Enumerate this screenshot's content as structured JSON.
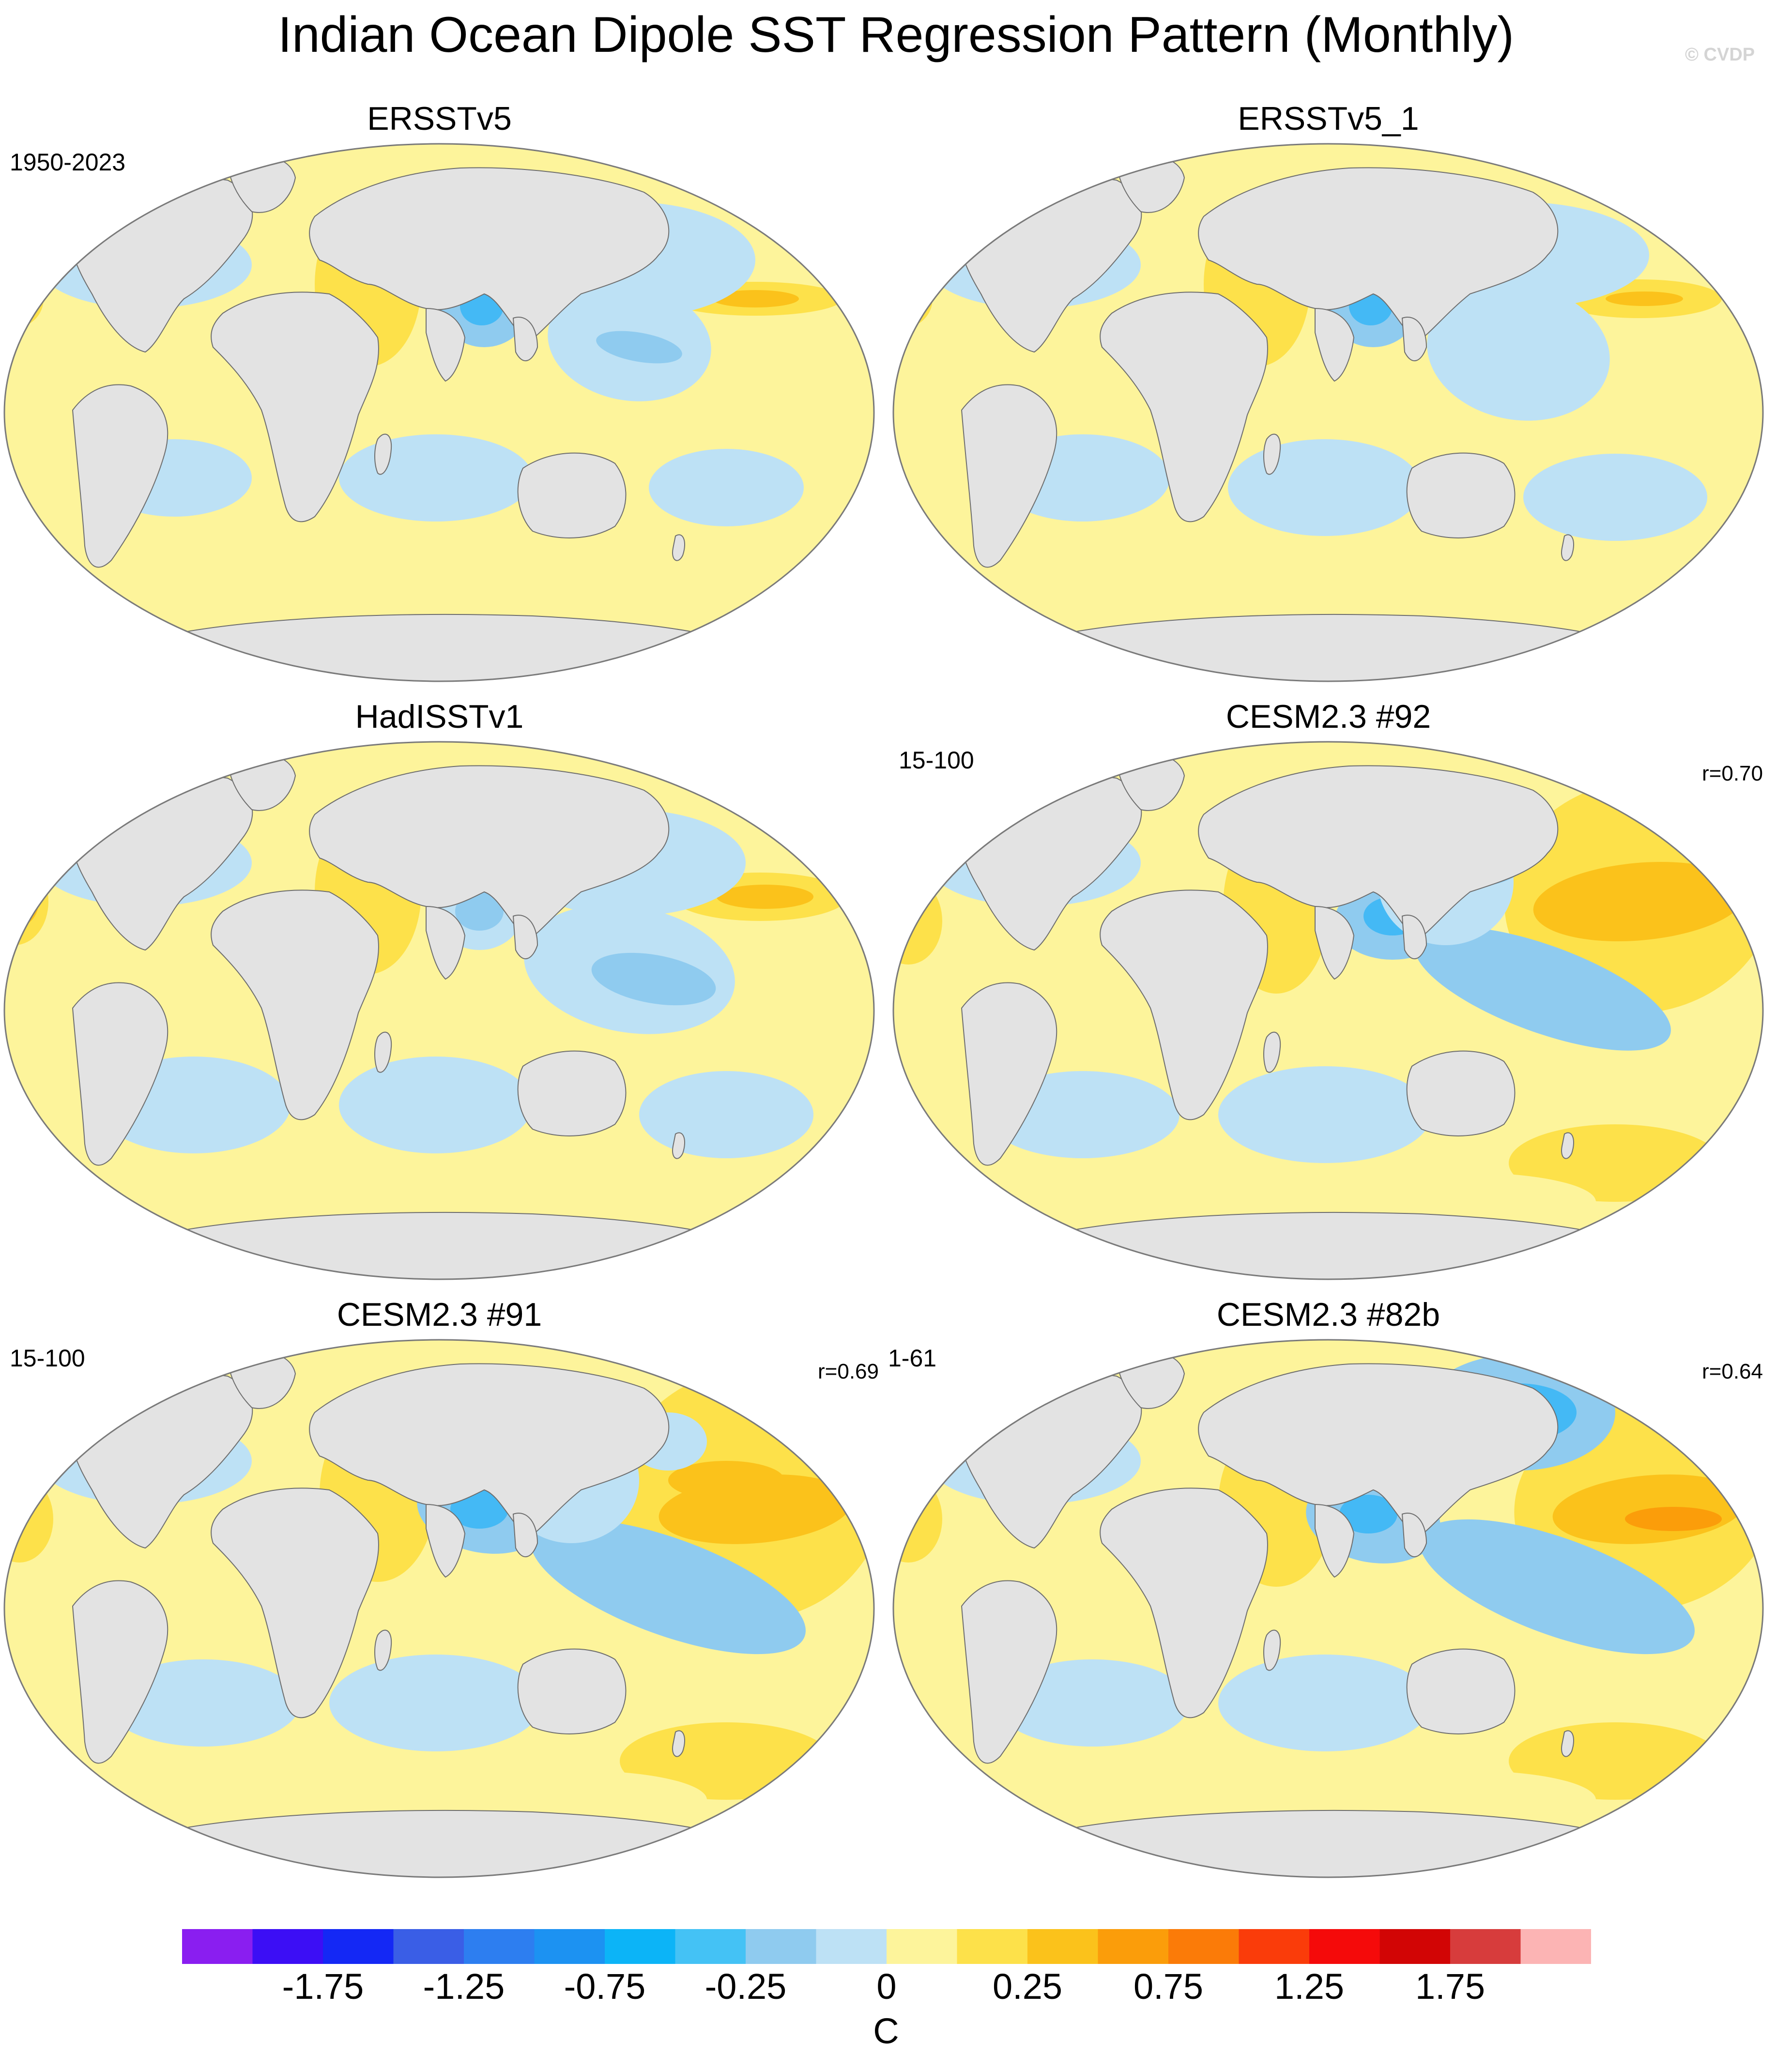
{
  "figure": {
    "title": "Indian Ocean Dipole SST Regression Pattern (Monthly)",
    "copyright": "© CVDP"
  },
  "palette": {
    "land": "#e3e3e3",
    "coast": "#6e6e6e",
    "neg1": "#bde1f5",
    "neg2": "#8fcbef",
    "neg3": "#44b9f5",
    "neg4": "#1c92f2",
    "pos1": "#fdf49b",
    "pos2": "#fde14a",
    "pos3": "#fbc21b",
    "pos4": "#fb9d0a"
  },
  "panels": [
    {
      "title": "ERSSTv5",
      "years": "1950-2023",
      "corr": ""
    },
    {
      "title": "ERSSTv5_1",
      "years": "",
      "corr": ""
    },
    {
      "title": "HadISSTv1",
      "years": "",
      "corr": ""
    },
    {
      "title": "CESM2.3 #92",
      "years": "15-100",
      "corr": "r=0.70"
    },
    {
      "title": "CESM2.3 #91",
      "years": "15-100",
      "corr": "r=0.69"
    },
    {
      "title": "CESM2.3 #82b",
      "years": "1-61",
      "corr": "r=0.64"
    }
  ],
  "colorbar": {
    "units": "C",
    "colors": [
      "#8a1ef0",
      "#3c0ef5",
      "#1428f5",
      "#3a5ee6",
      "#2d7ef0",
      "#1c92f2",
      "#0cb4f7",
      "#44c2f5",
      "#8fcbef",
      "#bde1f5",
      "#fdf49b",
      "#fde14a",
      "#fbc21b",
      "#fb9d0a",
      "#fb7b08",
      "#fa3c0a",
      "#f50a0a",
      "#d20505",
      "#d73c3c",
      "#fcb4b4"
    ],
    "tick_labels": [
      "-1.75",
      "-1.25",
      "-0.75",
      "-0.25",
      "0",
      "0.25",
      "0.75",
      "1.25",
      "1.75"
    ]
  }
}
